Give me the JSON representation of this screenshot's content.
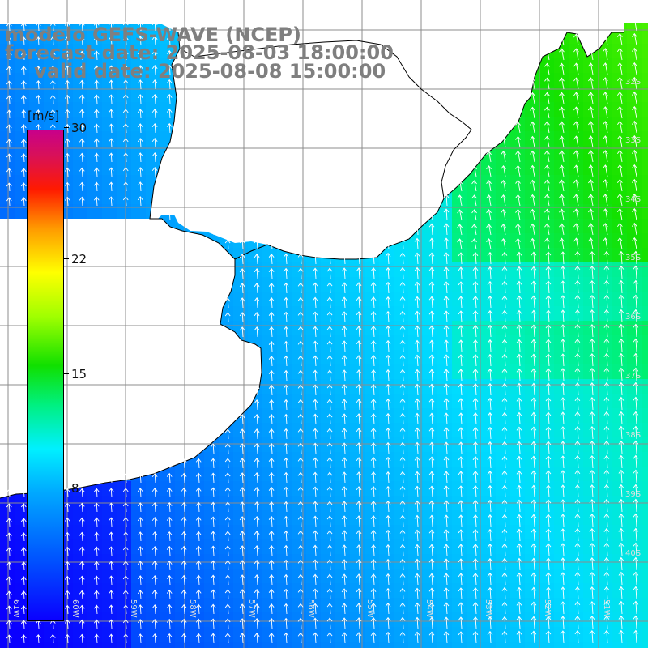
{
  "title": {
    "line1": "modelo GEFS-WAVE (NCEP)",
    "line2": "forecast date: 2025-08-03 18:00:00",
    "line3": "valid date: 2025-08-08 15:00:00"
  },
  "colorbar": {
    "unit": "[m/s]",
    "ticks": [
      {
        "label": "30",
        "value": 30
      },
      {
        "label": "22",
        "value": 22
      },
      {
        "label": "15",
        "value": 15
      },
      {
        "label": "8",
        "value": 8
      }
    ],
    "min": 0,
    "max": 30
  },
  "lon_labels": [
    "61W",
    "60W",
    "59W",
    "58W",
    "57W",
    "56W",
    "55W",
    "54W",
    "53W",
    "52W",
    "51W"
  ],
  "lat_labels": [
    "32S",
    "33S",
    "34S",
    "35S",
    "36S",
    "37S",
    "38S",
    "39S",
    "40S"
  ],
  "colors": {
    "land": "#ffffff",
    "grid": "#8c8c8c",
    "coast": "#000000",
    "title": "#7f7f7f",
    "arrow": "#ffffff"
  }
}
